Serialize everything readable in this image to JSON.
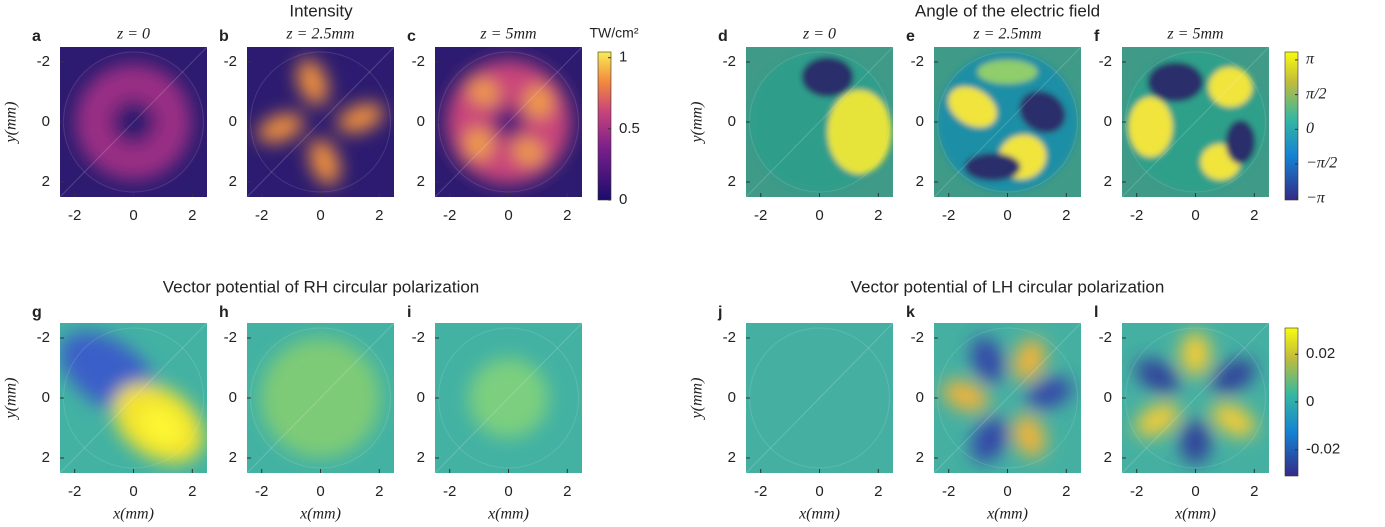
{
  "groups": [
    {
      "title": "Intensity",
      "colorbar": {
        "label": "TW/cm²",
        "lim": [
          0,
          1.04
        ],
        "ticks": [
          0,
          0.5,
          1
        ]
      },
      "panels": [
        {
          "letter": "a",
          "subtitle": "z = 0",
          "ylabel": "y(mm)",
          "xlim": [
            -2.5,
            2.5
          ],
          "ylim": [
            2.5,
            -2.5
          ],
          "xticks": [
            -2,
            0,
            2
          ],
          "yticks": [
            -2,
            0,
            2
          ]
        },
        {
          "letter": "b",
          "subtitle": "z = 2.5mm",
          "xlim": [
            -2.5,
            2.5
          ],
          "ylim": [
            2.5,
            -2.5
          ],
          "xticks": [
            -2,
            0,
            2
          ],
          "yticks": [
            -2,
            0,
            2
          ]
        },
        {
          "letter": "c",
          "subtitle": "z = 5mm",
          "xlim": [
            -2.5,
            2.5
          ],
          "ylim": [
            2.5,
            -2.5
          ],
          "xticks": [
            -2,
            0,
            2
          ],
          "yticks": [
            -2,
            0,
            2
          ]
        }
      ]
    },
    {
      "title": "Angle of the electric field",
      "colorbar": {
        "lim": [
          -3.2,
          3.5
        ],
        "ticks": [
          {
            "value": 3.14159,
            "label": "π"
          },
          {
            "value": 1.5708,
            "label": "π/2"
          },
          0,
          {
            "value": -1.5708,
            "label": "−π/2"
          },
          {
            "value": -3.14159,
            "label": "−π"
          }
        ]
      },
      "panels": [
        {
          "letter": "d",
          "subtitle": "z = 0",
          "ylabel": "y(mm)",
          "xlim": [
            -2.5,
            2.5
          ],
          "ylim": [
            2.5,
            -2.5
          ],
          "xticks": [
            -2,
            0,
            2
          ],
          "yticks": [
            -2,
            0,
            2
          ]
        },
        {
          "letter": "e",
          "subtitle": "z = 2.5mm",
          "xlim": [
            -2.5,
            2.5
          ],
          "ylim": [
            2.5,
            -2.5
          ],
          "xticks": [
            -2,
            0,
            2
          ],
          "yticks": [
            -2,
            0,
            2
          ]
        },
        {
          "letter": "f",
          "subtitle": "z = 5mm",
          "xlim": [
            -2.5,
            2.5
          ],
          "ylim": [
            2.5,
            -2.5
          ],
          "xticks": [
            -2,
            0,
            2
          ],
          "yticks": [
            -2,
            0,
            2
          ]
        }
      ]
    },
    {
      "title": "Vector potential of RH circular polarization",
      "panels": [
        {
          "letter": "g",
          "ylabel": "y(mm)",
          "xlabel": "x(mm)",
          "xlim": [
            -2.5,
            2.5
          ],
          "ylim": [
            2.5,
            -2.5
          ],
          "xticks": [
            -2,
            0,
            2
          ],
          "yticks": [
            -2,
            0,
            2
          ]
        },
        {
          "letter": "h",
          "xlabel": "x(mm)",
          "xlim": [
            -2.5,
            2.5
          ],
          "ylim": [
            2.5,
            -2.5
          ],
          "xticks": [
            -2,
            0,
            2
          ],
          "yticks": [
            -2,
            0,
            2
          ]
        },
        {
          "letter": "i",
          "xlabel": "x(mm)",
          "xlim": [
            -2.5,
            2.5
          ],
          "ylim": [
            2.5,
            -2.5
          ],
          "xticks": [
            -2,
            0,
            2
          ],
          "yticks": [
            -2,
            0,
            2
          ]
        }
      ]
    },
    {
      "title": "Vector potential of LH circular polarization",
      "colorbar": {
        "lim": [
          -0.031,
          0.031
        ],
        "ticks": [
          0.02,
          0,
          -0.02
        ]
      },
      "panels": [
        {
          "letter": "j",
          "ylabel": "y(mm)",
          "xlabel": "x(mm)",
          "xlim": [
            -2.5,
            2.5
          ],
          "ylim": [
            2.5,
            -2.5
          ],
          "xticks": [
            -2,
            0,
            2
          ],
          "yticks": [
            -2,
            0,
            2
          ]
        },
        {
          "letter": "k",
          "xlabel": "x(mm)",
          "xlim": [
            -2.5,
            2.5
          ],
          "ylim": [
            2.5,
            -2.5
          ],
          "xticks": [
            -2,
            0,
            2
          ],
          "yticks": [
            -2,
            0,
            2
          ]
        },
        {
          "letter": "l",
          "xlabel": "x(mm)",
          "xlim": [
            -2.5,
            2.5
          ],
          "ylim": [
            2.5,
            -2.5
          ],
          "xticks": [
            -2,
            0,
            2
          ],
          "yticks": [
            -2,
            0,
            2
          ]
        }
      ]
    }
  ]
}
